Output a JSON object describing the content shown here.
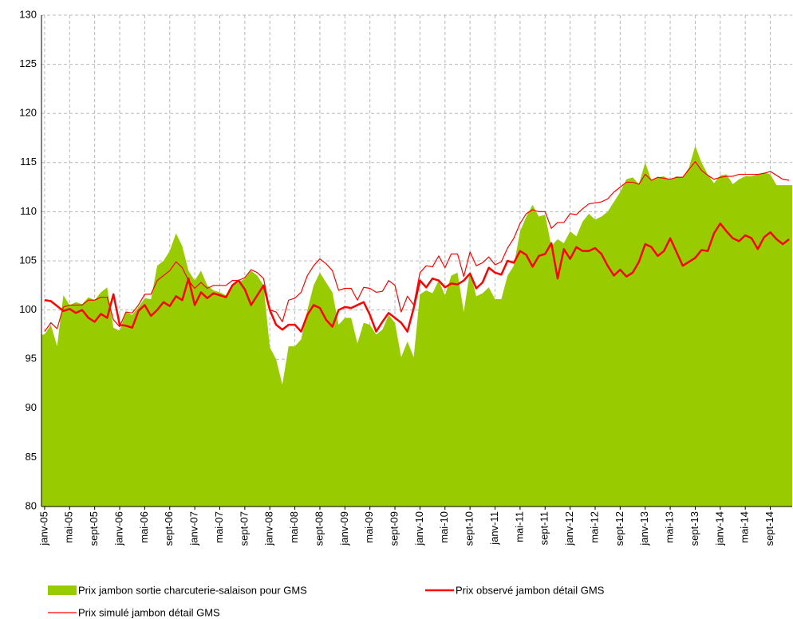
{
  "chart_data": {
    "type": "area-line",
    "categories": [
      "janv-05",
      null,
      null,
      null,
      "mai-05",
      null,
      null,
      null,
      "sept-05",
      null,
      null,
      null,
      "janv-06",
      null,
      null,
      null,
      "mai-06",
      null,
      null,
      null,
      "sept-06",
      null,
      null,
      null,
      "janv-07",
      null,
      null,
      null,
      "mai-07",
      null,
      null,
      null,
      "sept-07",
      null,
      null,
      null,
      "janv-08",
      null,
      null,
      null,
      "mai-08",
      null,
      null,
      null,
      "sept-08",
      null,
      null,
      null,
      "janv-09",
      null,
      null,
      null,
      "mai-09",
      null,
      null,
      null,
      "sept-09",
      null,
      null,
      null,
      "janv-10",
      null,
      null,
      null,
      "mai-10",
      null,
      null,
      null,
      "sept-10",
      null,
      null,
      null,
      "janv-11",
      null,
      null,
      null,
      "mai-11",
      null,
      null,
      null,
      "sept-11",
      null,
      null,
      null,
      "janv-12",
      null,
      null,
      null,
      "mai-12",
      null,
      null,
      null,
      "sept-12",
      null,
      null,
      null,
      "janv-13",
      null,
      null,
      null,
      "mai-13",
      null,
      null,
      null,
      "sept-13",
      null,
      null,
      null,
      "janv-14",
      null,
      null,
      null,
      "mai-14",
      null,
      null,
      null,
      "sept-14",
      null,
      null,
      null
    ],
    "series": [
      {
        "name": "Prix jambon sortie charcuterie-salaison pour GMS",
        "kind": "area",
        "color": "#99cc00",
        "values": [
          97.5,
          98.5,
          96.3,
          101.5,
          100.5,
          100.8,
          100.6,
          101.3,
          101,
          101.8,
          102.3,
          98.2,
          97.9,
          99.8,
          99.5,
          100.3,
          101.2,
          101.1,
          104.5,
          105,
          106,
          107.8,
          106.5,
          104,
          103,
          104,
          102.5,
          102,
          101.8,
          101.5,
          102.5,
          102.8,
          103.2,
          104,
          103.5,
          102.5,
          96.2,
          95,
          92.4,
          96.3,
          96.3,
          97,
          100,
          102.5,
          103.8,
          102.8,
          101.8,
          98.5,
          99.2,
          99.2,
          96.6,
          98.7,
          98.5,
          97.5,
          98,
          99.5,
          98.7,
          95.2,
          96.8,
          95.2,
          101.6,
          102,
          101.7,
          103,
          101.5,
          103.5,
          103.8,
          99.8,
          104,
          101.4,
          101.7,
          102.3,
          101.1,
          101.1,
          103.5,
          104.5,
          108,
          109.5,
          110.7,
          109.5,
          109.7,
          106.5,
          107.2,
          106.8,
          108,
          107.5,
          109,
          109.8,
          109.2,
          109.5,
          110,
          111,
          112,
          113.3,
          113.5,
          112.8,
          115,
          113.2,
          113.5,
          113.6,
          113.2,
          113.6,
          113.5,
          114.5,
          116.7,
          115,
          113.8,
          112.9,
          113.7,
          113.8,
          112.8,
          113.3,
          113.6,
          113.6,
          113.8,
          114,
          113.8,
          112.7,
          112.7,
          112.7
        ]
      },
      {
        "name": "Prix observé jambon détail GMS",
        "kind": "line",
        "color": "#ff0000",
        "values": [
          101,
          100.9,
          100.4,
          99.9,
          100.1,
          99.7,
          100,
          99.2,
          98.8,
          99.6,
          99.2,
          101.6,
          98.5,
          98.4,
          98.2,
          99.9,
          100.5,
          99.4,
          100,
          100.8,
          100.4,
          101.4,
          101,
          103.2,
          100.5,
          101.8,
          101.2,
          101.7,
          101.5,
          101.3,
          102.5,
          103,
          102.1,
          100.5,
          101.5,
          102.5,
          100,
          98.5,
          98,
          98.5,
          98.5,
          97.8,
          99.5,
          100.5,
          100.2,
          99,
          98.3,
          100,
          100.3,
          100.2,
          100.5,
          100.8,
          99.5,
          97.8,
          98.8,
          99.7,
          99.2,
          98.7,
          97.8,
          100.2,
          103,
          102.3,
          103.2,
          103,
          102.3,
          102.7,
          102.6,
          103,
          103.7,
          102.2,
          102.8,
          104.3,
          103.8,
          103.6,
          105,
          104.8,
          106,
          105.6,
          104.4,
          105.5,
          105.7,
          106.8,
          103.2,
          106.2,
          105.2,
          106.4,
          106,
          106,
          106.3,
          105.7,
          104.5,
          103.5,
          104.1,
          103.4,
          103.8,
          104.9,
          106.7,
          106.4,
          105.5,
          106,
          107.3,
          105.9,
          104.5,
          104.9,
          105.3,
          106.1,
          106,
          107.8,
          108.8,
          108,
          107.3,
          107,
          107.6,
          107.3,
          106.2,
          107.4,
          107.9,
          107.2,
          106.7,
          107.2
        ]
      },
      {
        "name": "Prix simulé jambon détail GMS",
        "kind": "line",
        "color": "#ff0000",
        "values": [
          97.8,
          98.7,
          98.1,
          100.3,
          100.5,
          100.5,
          100.5,
          101,
          101,
          101.3,
          101.3,
          99,
          98.3,
          99.8,
          99.7,
          100.5,
          101.6,
          101.6,
          103,
          103.5,
          104,
          104.9,
          104.3,
          103,
          102.2,
          102.8,
          102.2,
          102.5,
          102.5,
          102.5,
          103,
          103,
          103.3,
          104.1,
          103.8,
          103.2,
          100,
          99.8,
          98.8,
          101,
          101.2,
          101.8,
          103.5,
          104.5,
          105.2,
          104.7,
          104,
          102,
          102.2,
          102.2,
          101,
          102.3,
          102.2,
          101.8,
          101.9,
          103,
          102.5,
          99.8,
          101.4,
          100.5,
          103.8,
          104.5,
          104.4,
          105.5,
          104.3,
          105.7,
          105.7,
          103.4,
          105.9,
          104.5,
          104.8,
          105.4,
          104.6,
          104.9,
          106.3,
          107.3,
          108.8,
          109.8,
          110.2,
          110,
          110,
          108.3,
          108.9,
          108.9,
          109.8,
          109.7,
          110.3,
          110.8,
          110.9,
          111,
          111.3,
          112,
          112.5,
          113,
          113,
          112.8,
          113.8,
          113.2,
          113.5,
          113.4,
          113.3,
          113.5,
          113.5,
          114.3,
          115.1,
          114.2,
          113.7,
          113.3,
          113.5,
          113.6,
          113.6,
          113.8,
          113.8,
          113.8,
          113.8,
          113.9,
          114.1,
          113.7,
          113.3,
          113.2
        ]
      }
    ],
    "ylim": [
      80,
      130
    ],
    "yticks": [
      80,
      85,
      90,
      95,
      100,
      105,
      110,
      115,
      120,
      125,
      130
    ],
    "grid": true
  }
}
